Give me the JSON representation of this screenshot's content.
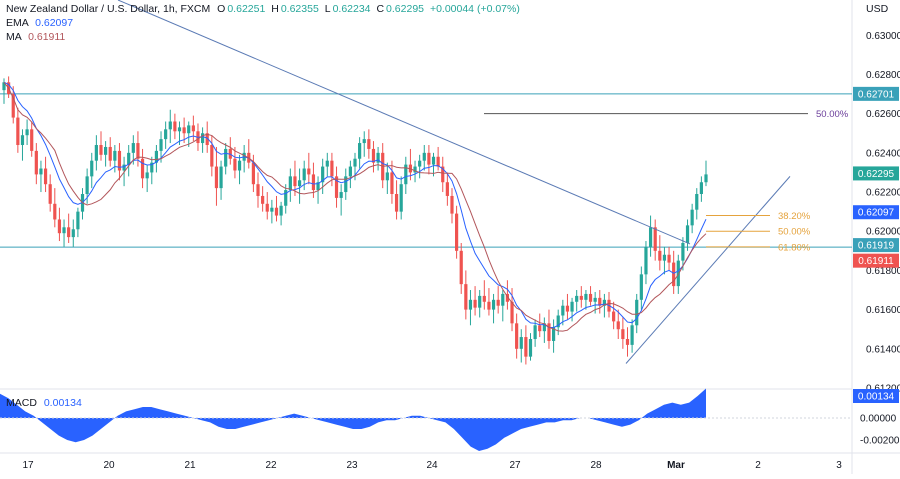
{
  "header": {
    "symbol_line": "New Zealand Dollar / U.S. Dollar, 1h, FXCM",
    "o_label": "O",
    "o_value": "0.62251",
    "h_label": "H",
    "h_value": "0.62355",
    "l_label": "L",
    "l_value": "0.62234",
    "c_label": "C",
    "c_value": "0.62295",
    "change": "+0.00044 (+0.07%)",
    "ema_label": "EMA",
    "ema_value": "0.62097",
    "ma_label": "MA",
    "ma_value": "0.61911",
    "currency": "USD"
  },
  "macd_panel": {
    "label": "MACD",
    "value": "0.00134"
  },
  "colors": {
    "up": "#26a69a",
    "down": "#ef5350",
    "ema": "#2962ff",
    "ma": "#b2565b",
    "trend": "#5b7bb5",
    "hline": "#3aa1b9",
    "fib": "#e5a33d",
    "fib50": "#6a3d9a",
    "macd": "#2962ff",
    "price_tag": "#26a69a"
  },
  "chart_data": {
    "type": "candlestick",
    "title": "New Zealand Dollar / U.S. Dollar, 1h, FXCM",
    "y_range": [
      0.612,
      0.6318
    ],
    "y_ticks": [
      "0.63000",
      "0.62800",
      "0.62600",
      "0.62400",
      "0.62200",
      "0.62000",
      "0.61800",
      "0.61600",
      "0.61400",
      "0.61200"
    ],
    "x_ticks": [
      "17",
      "20",
      "21",
      "22",
      "23",
      "24",
      "27",
      "28",
      "Mar",
      "2",
      "3"
    ],
    "candles": [
      [
        0.6272,
        0.6278,
        0.6265,
        0.6276
      ],
      [
        0.6276,
        0.6279,
        0.6268,
        0.627
      ],
      [
        0.627,
        0.6274,
        0.6255,
        0.6258
      ],
      [
        0.6258,
        0.6263,
        0.624,
        0.6244
      ],
      [
        0.6244,
        0.6252,
        0.6236,
        0.6249
      ],
      [
        0.6249,
        0.6257,
        0.6244,
        0.6252
      ],
      [
        0.6252,
        0.6256,
        0.6238,
        0.6241
      ],
      [
        0.6241,
        0.6245,
        0.6224,
        0.6229
      ],
      [
        0.6229,
        0.6236,
        0.622,
        0.6232
      ],
      [
        0.6232,
        0.6238,
        0.622,
        0.6224
      ],
      [
        0.6224,
        0.6229,
        0.621,
        0.6214
      ],
      [
        0.6214,
        0.6222,
        0.6202,
        0.6206
      ],
      [
        0.6206,
        0.6212,
        0.6195,
        0.6199
      ],
      [
        0.6199,
        0.6206,
        0.6192,
        0.6202
      ],
      [
        0.6202,
        0.6209,
        0.6194,
        0.6197
      ],
      [
        0.6197,
        0.6206,
        0.6192,
        0.6201
      ],
      [
        0.6201,
        0.6212,
        0.6197,
        0.621
      ],
      [
        0.621,
        0.6222,
        0.6206,
        0.6219
      ],
      [
        0.6219,
        0.6232,
        0.6214,
        0.6228
      ],
      [
        0.6228,
        0.624,
        0.6222,
        0.6236
      ],
      [
        0.6236,
        0.6249,
        0.6231,
        0.6244
      ],
      [
        0.6244,
        0.6251,
        0.6236,
        0.6239
      ],
      [
        0.6239,
        0.6246,
        0.6233,
        0.6243
      ],
      [
        0.6243,
        0.6248,
        0.6233,
        0.6236
      ],
      [
        0.6236,
        0.6244,
        0.623,
        0.6241
      ],
      [
        0.6241,
        0.6245,
        0.6226,
        0.6231
      ],
      [
        0.6231,
        0.6238,
        0.6223,
        0.6234
      ],
      [
        0.6234,
        0.6244,
        0.6228,
        0.624
      ],
      [
        0.624,
        0.6249,
        0.6234,
        0.6245
      ],
      [
        0.6245,
        0.6251,
        0.6233,
        0.6237
      ],
      [
        0.6237,
        0.6242,
        0.6222,
        0.6227
      ],
      [
        0.6227,
        0.6234,
        0.622,
        0.623
      ],
      [
        0.623,
        0.6238,
        0.6224,
        0.6235
      ],
      [
        0.6235,
        0.6244,
        0.623,
        0.6241
      ],
      [
        0.6241,
        0.6251,
        0.6235,
        0.6247
      ],
      [
        0.6247,
        0.6256,
        0.6242,
        0.6252
      ],
      [
        0.6252,
        0.6262,
        0.6245,
        0.6256
      ],
      [
        0.6256,
        0.626,
        0.6247,
        0.6251
      ],
      [
        0.6251,
        0.6256,
        0.6244,
        0.6253
      ],
      [
        0.6253,
        0.6258,
        0.6245,
        0.625
      ],
      [
        0.625,
        0.6256,
        0.6243,
        0.6254
      ],
      [
        0.6254,
        0.6259,
        0.6246,
        0.6251
      ],
      [
        0.6251,
        0.6255,
        0.6241,
        0.6245
      ],
      [
        0.6245,
        0.6253,
        0.624,
        0.625
      ],
      [
        0.625,
        0.6256,
        0.624,
        0.6244
      ],
      [
        0.6244,
        0.6249,
        0.6228,
        0.6233
      ],
      [
        0.6233,
        0.6243,
        0.6213,
        0.6222
      ],
      [
        0.6222,
        0.6236,
        0.6216,
        0.6233
      ],
      [
        0.6233,
        0.6245,
        0.6229,
        0.6242
      ],
      [
        0.6242,
        0.6248,
        0.6234,
        0.6237
      ],
      [
        0.6237,
        0.6243,
        0.6227,
        0.6231
      ],
      [
        0.6231,
        0.6239,
        0.6224,
        0.6236
      ],
      [
        0.6236,
        0.6244,
        0.623,
        0.624
      ],
      [
        0.624,
        0.6247,
        0.6232,
        0.6235
      ],
      [
        0.6235,
        0.6239,
        0.622,
        0.6224
      ],
      [
        0.6224,
        0.623,
        0.6212,
        0.6218
      ],
      [
        0.6218,
        0.6223,
        0.621,
        0.6214
      ],
      [
        0.6214,
        0.622,
        0.6206,
        0.621
      ],
      [
        0.621,
        0.6216,
        0.6204,
        0.6212
      ],
      [
        0.6212,
        0.6218,
        0.6205,
        0.6208
      ],
      [
        0.6208,
        0.6215,
        0.6203,
        0.6213
      ],
      [
        0.6213,
        0.6224,
        0.6209,
        0.6221
      ],
      [
        0.6221,
        0.6232,
        0.6215,
        0.6228
      ],
      [
        0.6228,
        0.6236,
        0.6218,
        0.6223
      ],
      [
        0.6223,
        0.6232,
        0.6214,
        0.6226
      ],
      [
        0.6226,
        0.6236,
        0.6221,
        0.6232
      ],
      [
        0.6232,
        0.624,
        0.6224,
        0.6229
      ],
      [
        0.6229,
        0.6235,
        0.6217,
        0.6221
      ],
      [
        0.6221,
        0.6228,
        0.6214,
        0.6225
      ],
      [
        0.6225,
        0.6237,
        0.6219,
        0.6233
      ],
      [
        0.6233,
        0.624,
        0.6228,
        0.6236
      ],
      [
        0.6236,
        0.624,
        0.6223,
        0.6228
      ],
      [
        0.6228,
        0.6233,
        0.6212,
        0.6217
      ],
      [
        0.6217,
        0.6224,
        0.6208,
        0.622
      ],
      [
        0.622,
        0.6232,
        0.6216,
        0.6228
      ],
      [
        0.6228,
        0.6236,
        0.6222,
        0.6233
      ],
      [
        0.6233,
        0.624,
        0.6226,
        0.6237
      ],
      [
        0.6237,
        0.6248,
        0.6232,
        0.6245
      ],
      [
        0.6245,
        0.6251,
        0.6238,
        0.6247
      ],
      [
        0.6247,
        0.6252,
        0.6237,
        0.6242
      ],
      [
        0.6242,
        0.6246,
        0.623,
        0.6235
      ],
      [
        0.6235,
        0.6243,
        0.6231,
        0.624
      ],
      [
        0.624,
        0.6245,
        0.6222,
        0.6226
      ],
      [
        0.6226,
        0.6235,
        0.6219,
        0.623
      ],
      [
        0.623,
        0.6236,
        0.6214,
        0.6219
      ],
      [
        0.6219,
        0.6226,
        0.6206,
        0.621
      ],
      [
        0.621,
        0.6228,
        0.6206,
        0.6224
      ],
      [
        0.6224,
        0.6238,
        0.6219,
        0.6234
      ],
      [
        0.6234,
        0.6242,
        0.6226,
        0.623
      ],
      [
        0.623,
        0.6236,
        0.6225,
        0.6233
      ],
      [
        0.6233,
        0.6239,
        0.6227,
        0.6236
      ],
      [
        0.6236,
        0.6244,
        0.6231,
        0.624
      ],
      [
        0.624,
        0.6244,
        0.6229,
        0.6234
      ],
      [
        0.6234,
        0.624,
        0.6228,
        0.6238
      ],
      [
        0.6238,
        0.6243,
        0.6231,
        0.6233
      ],
      [
        0.6233,
        0.6238,
        0.622,
        0.6225
      ],
      [
        0.6225,
        0.623,
        0.6213,
        0.6218
      ],
      [
        0.6218,
        0.6222,
        0.6204,
        0.6209
      ],
      [
        0.6209,
        0.6213,
        0.6186,
        0.619
      ],
      [
        0.619,
        0.6194,
        0.6168,
        0.6173
      ],
      [
        0.6173,
        0.618,
        0.6155,
        0.616
      ],
      [
        0.616,
        0.617,
        0.6152,
        0.6165
      ],
      [
        0.6165,
        0.6172,
        0.6157,
        0.6161
      ],
      [
        0.6161,
        0.617,
        0.6156,
        0.6167
      ],
      [
        0.6167,
        0.6175,
        0.616,
        0.6164
      ],
      [
        0.6164,
        0.6171,
        0.6157,
        0.616
      ],
      [
        0.616,
        0.6168,
        0.6153,
        0.6165
      ],
      [
        0.6165,
        0.6172,
        0.6158,
        0.6162
      ],
      [
        0.6162,
        0.617,
        0.6154,
        0.6168
      ],
      [
        0.6168,
        0.6175,
        0.616,
        0.6164
      ],
      [
        0.6164,
        0.6171,
        0.6149,
        0.6153
      ],
      [
        0.6153,
        0.6158,
        0.6135,
        0.614
      ],
      [
        0.614,
        0.615,
        0.6133,
        0.6146
      ],
      [
        0.6146,
        0.6152,
        0.6132,
        0.6136
      ],
      [
        0.6136,
        0.6148,
        0.6134,
        0.6145
      ],
      [
        0.6145,
        0.6155,
        0.6141,
        0.6152
      ],
      [
        0.6152,
        0.6158,
        0.6146,
        0.6149
      ],
      [
        0.6149,
        0.6156,
        0.6143,
        0.6153
      ],
      [
        0.6153,
        0.616,
        0.614,
        0.6144
      ],
      [
        0.6144,
        0.6155,
        0.6138,
        0.6151
      ],
      [
        0.6151,
        0.616,
        0.6147,
        0.6157
      ],
      [
        0.6157,
        0.6165,
        0.6152,
        0.6162
      ],
      [
        0.6162,
        0.6168,
        0.6155,
        0.6159
      ],
      [
        0.6159,
        0.6166,
        0.6154,
        0.6164
      ],
      [
        0.6164,
        0.617,
        0.6159,
        0.6167
      ],
      [
        0.6167,
        0.6172,
        0.6161,
        0.6165
      ],
      [
        0.6165,
        0.617,
        0.616,
        0.6168
      ],
      [
        0.6168,
        0.6172,
        0.6162,
        0.6164
      ],
      [
        0.6164,
        0.6169,
        0.6158,
        0.6166
      ],
      [
        0.6166,
        0.617,
        0.6158,
        0.6162
      ],
      [
        0.6162,
        0.6168,
        0.6156,
        0.6165
      ],
      [
        0.6165,
        0.6169,
        0.6156,
        0.6159
      ],
      [
        0.6159,
        0.6164,
        0.615,
        0.6154
      ],
      [
        0.6154,
        0.616,
        0.6145,
        0.615
      ],
      [
        0.615,
        0.6156,
        0.614,
        0.6145
      ],
      [
        0.6145,
        0.6151,
        0.6136,
        0.6142
      ],
      [
        0.6142,
        0.6155,
        0.6138,
        0.6152
      ],
      [
        0.6152,
        0.6168,
        0.6148,
        0.6165
      ],
      [
        0.6165,
        0.6182,
        0.616,
        0.6178
      ],
      [
        0.6178,
        0.6195,
        0.6173,
        0.6192
      ],
      [
        0.6192,
        0.6208,
        0.6187,
        0.6202
      ],
      [
        0.6202,
        0.6206,
        0.6185,
        0.619
      ],
      [
        0.619,
        0.6198,
        0.618,
        0.6185
      ],
      [
        0.6185,
        0.6192,
        0.6178,
        0.6188
      ],
      [
        0.6188,
        0.6192,
        0.618,
        0.6184
      ],
      [
        0.6184,
        0.619,
        0.6168,
        0.6172
      ],
      [
        0.6172,
        0.6188,
        0.6168,
        0.6185
      ],
      [
        0.6185,
        0.6197,
        0.618,
        0.6194
      ],
      [
        0.6194,
        0.6206,
        0.619,
        0.6203
      ],
      [
        0.6203,
        0.6214,
        0.6199,
        0.6211
      ],
      [
        0.6211,
        0.6222,
        0.6206,
        0.6219
      ],
      [
        0.6219,
        0.6228,
        0.6215,
        0.6225
      ],
      [
        0.6225,
        0.6236,
        0.6223,
        0.6229
      ]
    ]
  }
}
